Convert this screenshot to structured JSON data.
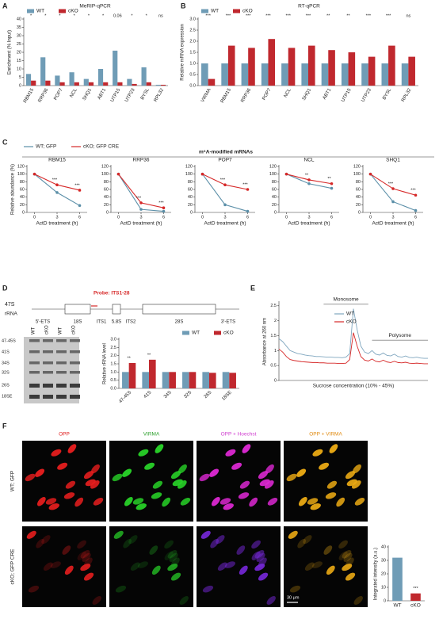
{
  "panel_labels": [
    "A",
    "B",
    "C",
    "D",
    "E",
    "F"
  ],
  "c_header": "m⁶A-modified mRNAs",
  "rrna": {
    "name": "47S",
    "kind": "rRNA",
    "probe": "Probe: ITS1-28",
    "segments": [
      "5'-ETS",
      "18S",
      "ITS1",
      "5.8S",
      "ITS2",
      "28S",
      "3'-ETS"
    ]
  },
  "blot": {
    "lanes": [
      "WT",
      "cKO",
      "WT",
      "cKO"
    ],
    "bands": [
      "47-45S",
      "41S",
      "34S",
      "32S",
      "26S",
      "18SE"
    ]
  },
  "imaging": {
    "columns": [
      "OPP",
      "VIRMA",
      "OPP + Hoechst",
      "OPP + VIRMA"
    ],
    "rows": [
      "WT; GFP",
      "cKO; GFP CRE"
    ],
    "scale_bar": "30 μm"
  },
  "chart_data": [
    {
      "type": "bar",
      "title": "MeRIP-qPCR",
      "ylabel": "Enrichment (% Input)",
      "categories": [
        "RBM15",
        "RRP36",
        "POP7",
        "NCL",
        "SHQ1",
        "ABT1",
        "UTP15",
        "UTP23",
        "BYSL",
        "RPL32"
      ],
      "series": [
        {
          "name": "WT",
          "color": "#6f9cb6",
          "values": [
            7,
            17,
            6,
            8,
            4,
            10,
            21,
            4,
            11,
            0.5
          ]
        },
        {
          "name": "cKO",
          "color": "#c0282e",
          "values": [
            3,
            3,
            2,
            2,
            2,
            2,
            2,
            1,
            2,
            0.5
          ]
        }
      ],
      "annotations": [
        "*",
        "*",
        "*",
        "*",
        "*",
        "*",
        "0.06",
        "*",
        "*",
        "ns"
      ],
      "ylim": [
        0,
        40
      ],
      "yticks": [
        0,
        5,
        10,
        15,
        20,
        25,
        30,
        35,
        40
      ]
    },
    {
      "type": "bar",
      "title": "RT-qPCR",
      "ylabel": "Relative mRNA expression",
      "categories": [
        "VIRMA",
        "RBM15",
        "RRP36",
        "POP7",
        "NCL",
        "SHQ1",
        "ABT1",
        "UTP15",
        "UTP23",
        "BYSL",
        "RPL32"
      ],
      "series": [
        {
          "name": "WT",
          "color": "#6f9cb6",
          "values": [
            1,
            1,
            1,
            1,
            1,
            1,
            1,
            1,
            1,
            1,
            1
          ]
        },
        {
          "name": "cKO",
          "color": "#c0282e",
          "values": [
            0.3,
            1.8,
            1.7,
            2.1,
            1.7,
            1.8,
            1.6,
            1.5,
            1.3,
            1.8,
            1.3
          ]
        }
      ],
      "annotations": [
        "***",
        "***",
        "***",
        "***",
        "***",
        "***",
        "**",
        "**",
        "***",
        "***",
        "ns"
      ],
      "ylim": [
        0,
        3
      ],
      "yticks": [
        {
          "value": 0,
          "label": "0.0"
        },
        0.5,
        {
          "value": 1,
          "label": "1.0"
        },
        1.5,
        {
          "value": 2,
          "label": "2.0"
        },
        2.5,
        {
          "value": 3,
          "label": "3.0"
        }
      ]
    },
    {
      "type": "line",
      "title": "RBM15",
      "ylabel": "Relative abundance (%)",
      "xlabel": "ActD treatment (h)",
      "x": [
        0,
        3,
        6
      ],
      "series": [
        {
          "name": "WT; GFP",
          "color": "#5b8fa8",
          "values": [
            100,
            52,
            18
          ]
        },
        {
          "name": "cKO; GFP CRE",
          "color": "#d62828",
          "values": [
            100,
            72,
            58
          ]
        }
      ],
      "annotations": [
        null,
        "***",
        "***"
      ],
      "xlim": [
        -1,
        7
      ],
      "xticks": [
        0,
        3,
        6
      ],
      "ylim": [
        0,
        120
      ],
      "yticks": [
        0,
        20,
        40,
        60,
        80,
        100,
        120
      ]
    },
    {
      "type": "line",
      "title": "RRP36",
      "xlabel": "ActD treatment (h)",
      "x": [
        0,
        3,
        6
      ],
      "series": [
        {
          "color": "#5b8fa8",
          "values": [
            100,
            8,
            3
          ]
        },
        {
          "color": "#d62828",
          "values": [
            100,
            25,
            12
          ]
        }
      ],
      "annotations": [
        null,
        "***",
        "***"
      ],
      "xlim": [
        -1,
        7
      ],
      "xticks": [
        0,
        3,
        6
      ],
      "ylim": [
        0,
        120
      ],
      "yticks": [
        0,
        20,
        40,
        60,
        80,
        100,
        120
      ]
    },
    {
      "type": "line",
      "title": "POP7",
      "xlabel": "ActD treatment (h)",
      "x": [
        0,
        3,
        6
      ],
      "series": [
        {
          "color": "#5b8fa8",
          "values": [
            100,
            20,
            3
          ]
        },
        {
          "color": "#d62828",
          "values": [
            100,
            72,
            60
          ]
        }
      ],
      "annotations": [
        null,
        "***",
        "***"
      ],
      "xlim": [
        -1,
        7
      ],
      "xticks": [
        0,
        3,
        6
      ],
      "ylim": [
        0,
        120
      ],
      "yticks": [
        0,
        20,
        40,
        60,
        80,
        100,
        120
      ]
    },
    {
      "type": "line",
      "title": "NCL",
      "xlabel": "ActD treatment (h)",
      "x": [
        0,
        3,
        6
      ],
      "series": [
        {
          "color": "#5b8fa8",
          "values": [
            100,
            75,
            63
          ]
        },
        {
          "color": "#d62828",
          "values": [
            100,
            85,
            75
          ]
        }
      ],
      "annotations": [
        null,
        "**",
        "**"
      ],
      "xlim": [
        -1,
        7
      ],
      "xticks": [
        0,
        3,
        6
      ],
      "ylim": [
        0,
        120
      ],
      "yticks": [
        0,
        20,
        40,
        60,
        80,
        100,
        120
      ]
    },
    {
      "type": "line",
      "title": "SHQ1",
      "xlabel": "ActD treatment (h)",
      "x": [
        0,
        3,
        6
      ],
      "series": [
        {
          "color": "#5b8fa8",
          "values": [
            100,
            28,
            5
          ]
        },
        {
          "color": "#d62828",
          "values": [
            100,
            62,
            45
          ]
        }
      ],
      "annotations": [
        null,
        "***",
        "***"
      ],
      "xlim": [
        -1,
        7
      ],
      "xticks": [
        0,
        3,
        6
      ],
      "ylim": [
        0,
        120
      ],
      "yticks": [
        0,
        20,
        40,
        60,
        80,
        100,
        120
      ]
    },
    {
      "type": "bar",
      "ylabel": "Relative rRNA level",
      "categories": [
        "47-45S",
        "41S",
        "34S",
        "32S",
        "26S",
        "18SE"
      ],
      "series": [
        {
          "name": "WT",
          "color": "#6f9cb6",
          "values": [
            1,
            1,
            1,
            1,
            1,
            1
          ]
        },
        {
          "name": "cKO",
          "color": "#c0282e",
          "values": [
            1.55,
            1.75,
            1.0,
            1.0,
            0.95,
            0.95
          ]
        }
      ],
      "annotations": [
        "**",
        "**",
        null,
        null,
        null,
        null
      ],
      "ylim": [
        0,
        3
      ],
      "yticks": [
        {
          "value": 0,
          "label": "0.0"
        },
        0.5,
        {
          "value": 1,
          "label": "1.0"
        },
        1.5,
        {
          "value": 2,
          "label": "2.0"
        },
        2.5,
        {
          "value": 3,
          "label": "3.0"
        }
      ]
    },
    {
      "type": "line",
      "ylabel": "Absorbance at 260 nm",
      "xlabel": "Sucrose concentration (10% - 45%)",
      "x": [
        0,
        1,
        2,
        3,
        4,
        5,
        6,
        7,
        8,
        9,
        10,
        11,
        12,
        13,
        14,
        15,
        16,
        17,
        18,
        19,
        20,
        21,
        22,
        23,
        24,
        25,
        26,
        27,
        28,
        29,
        30,
        31,
        32,
        33,
        34,
        35,
        36,
        37,
        38,
        39,
        40
      ],
      "series": [
        {
          "name": "WT",
          "color": "#7fa6bf",
          "values": [
            1.4,
            1.3,
            1.15,
            1.0,
            0.95,
            0.9,
            0.88,
            0.85,
            0.83,
            0.82,
            0.8,
            0.8,
            0.79,
            0.78,
            0.78,
            0.77,
            0.77,
            0.76,
            0.78,
            0.9,
            2.4,
            1.7,
            1.15,
            0.95,
            0.9,
            1.0,
            0.88,
            0.85,
            0.92,
            0.84,
            0.82,
            0.88,
            0.8,
            0.78,
            0.82,
            0.77,
            0.76,
            0.78,
            0.75,
            0.74,
            0.74
          ]
        },
        {
          "name": "cKO",
          "color": "#d62828",
          "values": [
            1.05,
            0.95,
            0.8,
            0.7,
            0.67,
            0.65,
            0.63,
            0.62,
            0.61,
            0.6,
            0.6,
            0.59,
            0.59,
            0.58,
            0.58,
            0.58,
            0.57,
            0.57,
            0.58,
            0.7,
            1.6,
            1.15,
            0.8,
            0.68,
            0.65,
            0.72,
            0.64,
            0.62,
            0.68,
            0.62,
            0.6,
            0.64,
            0.6,
            0.59,
            0.61,
            0.58,
            0.57,
            0.58,
            0.57,
            0.56,
            0.56
          ]
        }
      ],
      "region_labels": [
        "Monosome",
        "Polysome"
      ],
      "xlim": [
        0,
        40
      ],
      "ylim": [
        0,
        2.6
      ],
      "yticks": [
        0,
        0.5,
        1,
        1.5,
        2,
        2.5
      ]
    },
    {
      "type": "bar",
      "ylabel": "Integrated intensity (a.u.)",
      "categories": [
        "WT",
        "cKO"
      ],
      "values": [
        32,
        5.5
      ],
      "colors": [
        "#6f9cb6",
        "#c0282e"
      ],
      "annotations": [
        null,
        "***"
      ],
      "ylim": [
        0,
        40
      ],
      "yticks": [
        0,
        10,
        20,
        30,
        40
      ]
    }
  ]
}
